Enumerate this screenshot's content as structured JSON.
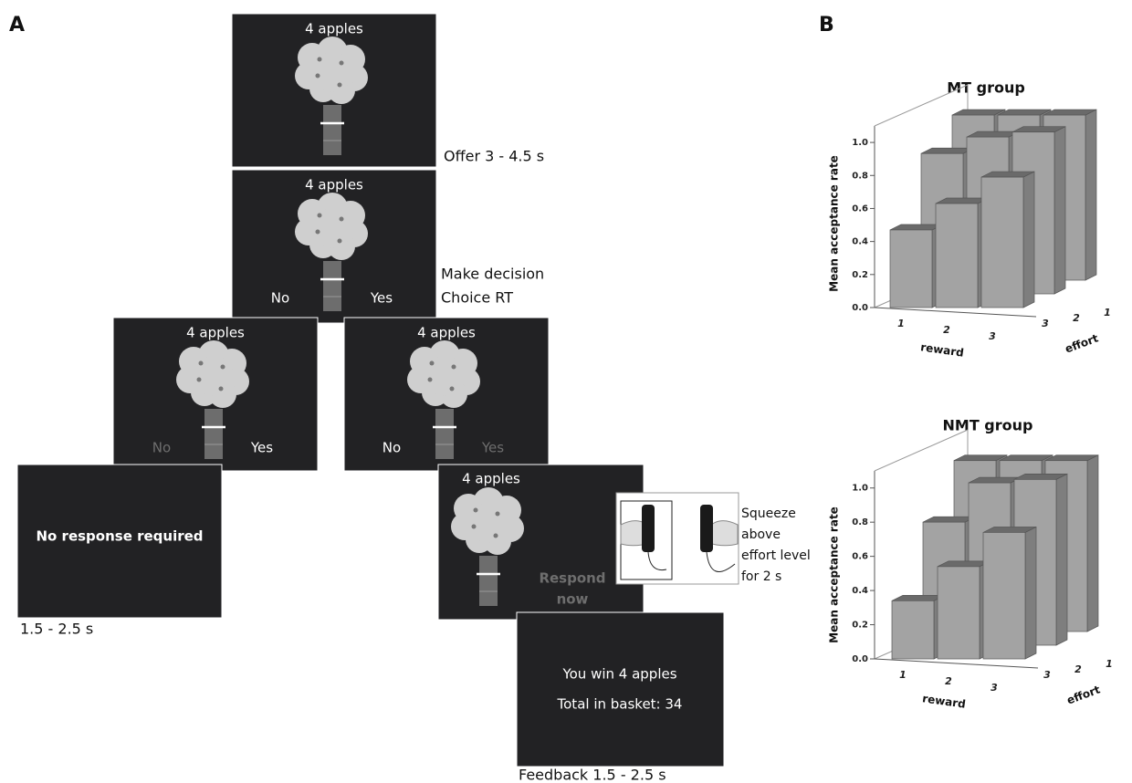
{
  "panel_a": {
    "label": "A",
    "screens": [
      {
        "heading": "4 apples",
        "caption": "Offer 3 - 4.5 s"
      },
      {
        "heading": "4 apples",
        "no": "No",
        "yes": "Yes",
        "caption": [
          "Make decision",
          "Choice RT"
        ]
      },
      {
        "heading": "4 apples",
        "no": "No",
        "yes": "Yes"
      },
      {
        "heading": "4 apples",
        "no": "No",
        "yes": "Yes"
      },
      {
        "message": "No response required",
        "caption": "1.5 - 2.5 s"
      },
      {
        "heading": "4 apples",
        "prompt": [
          "Respond",
          "now"
        ],
        "instruction": [
          "Squeeze",
          "above",
          "effort level",
          "for 2 s"
        ]
      },
      {
        "message": [
          "You win 4 apples",
          "Total in basket: 34"
        ],
        "caption": "Feedback 1.5 - 2.5 s"
      }
    ]
  },
  "panel_b": {
    "label": "B"
  },
  "chart_data": [
    {
      "type": "bar3d",
      "title": "MT group",
      "y_label": "Mean acceptance rate",
      "x_label": "reward",
      "z_label": "effort",
      "categories": [
        "1",
        "2",
        "3"
      ],
      "series": [
        {
          "name": "3",
          "color": "#a3a3a3",
          "values": [
            0.47,
            0.63,
            0.79
          ]
        },
        {
          "name": "2",
          "color": "#a3a3a3",
          "values": [
            0.85,
            0.95,
            0.98
          ]
        },
        {
          "name": "1",
          "color": "#a3a3a3",
          "values": [
            1.0,
            1.0,
            1.0
          ]
        }
      ],
      "ylim": [
        0,
        1.1
      ],
      "yticks": [
        {
          "value": 0,
          "label": "0.0"
        },
        {
          "value": 0.2,
          "label": "0.2"
        },
        {
          "value": 0.4,
          "label": "0.4"
        },
        {
          "value": 0.6,
          "label": "0.6"
        },
        {
          "value": 0.8,
          "label": "0.8"
        },
        {
          "value": 1,
          "label": "1.0"
        }
      ]
    },
    {
      "type": "bar3d",
      "title": "NMT group",
      "y_label": "Mean acceptance rate",
      "x_label": "reward",
      "z_label": "effort",
      "categories": [
        "1",
        "2",
        "3"
      ],
      "series": [
        {
          "name": "3",
          "color": "#a3a3a3",
          "values": [
            0.34,
            0.54,
            0.74
          ]
        },
        {
          "name": "2",
          "color": "#a3a3a3",
          "values": [
            0.72,
            0.95,
            0.97
          ]
        },
        {
          "name": "1",
          "color": "#a3a3a3",
          "values": [
            1.0,
            1.0,
            1.0
          ]
        }
      ],
      "ylim": [
        0,
        1.1
      ],
      "yticks": [
        {
          "value": 0,
          "label": "0.0"
        },
        {
          "value": 0.2,
          "label": "0.2"
        },
        {
          "value": 0.4,
          "label": "0.4"
        },
        {
          "value": 0.6,
          "label": "0.6"
        },
        {
          "value": 0.8,
          "label": "0.8"
        },
        {
          "value": 1,
          "label": "1.0"
        }
      ]
    }
  ]
}
